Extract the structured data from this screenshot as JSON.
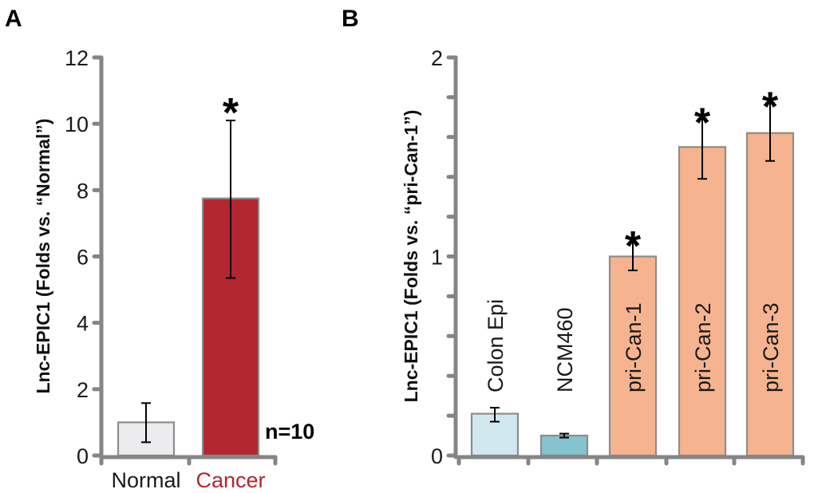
{
  "chart_data": [
    {
      "type": "bar",
      "panel": "A",
      "title": "",
      "xlabel": "",
      "ylabel": "Lnc-EPIC1 (Folds vs. “Normal”)",
      "ylim": [
        0,
        12
      ],
      "yticks": [
        0,
        2,
        4,
        6,
        8,
        10,
        12
      ],
      "grid": false,
      "categories": [
        "Normal",
        "Cancer"
      ],
      "values": [
        1.0,
        7.75
      ],
      "error_low": [
        0.4,
        5.35
      ],
      "error_high": [
        1.58,
        10.1
      ],
      "significance": [
        "",
        "*"
      ],
      "colors": [
        "#ececee",
        "#b22630"
      ],
      "label_colors": [
        "#1a1a1a",
        "#b22630"
      ],
      "annotation": "n=10"
    },
    {
      "type": "bar",
      "panel": "B",
      "title": "",
      "xlabel": "",
      "ylabel": "Lnc-EPIC1 (Folds vs. “pri-Can-1”)",
      "ylim": [
        0,
        2
      ],
      "yticks": [
        0,
        1,
        2
      ],
      "minor_tick_step": 0.2,
      "grid": false,
      "categories": [
        "Colon Epi",
        "NCM460",
        "pri-Can-1",
        "pri-Can-2",
        "pri-Can-3"
      ],
      "values": [
        0.21,
        0.1,
        1.0,
        1.55,
        1.62
      ],
      "error_low": [
        0.17,
        0.09,
        0.93,
        1.39,
        1.48
      ],
      "error_high": [
        0.24,
        0.11,
        1.07,
        1.69,
        1.77
      ],
      "significance": [
        "",
        "",
        "*",
        "*",
        "*"
      ],
      "colors": [
        "#d1e8ef",
        "#85c3cf",
        "#f5b48f",
        "#f5b48f",
        "#f5b48f"
      ]
    }
  ],
  "axis_color": "#858585",
  "bar_edge_color": "#8c8c8c"
}
